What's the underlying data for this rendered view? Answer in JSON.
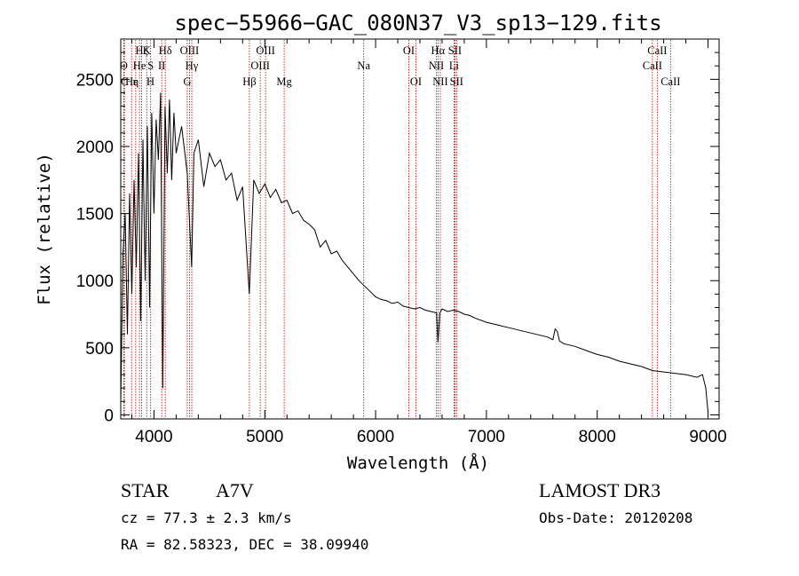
{
  "chart_data": {
    "type": "line",
    "title": "spec−55966−GAC_080N37_V3_sp13−129.fits",
    "xlabel": "Wavelength (Å)",
    "ylabel": "Flux (relative)",
    "xlim": [
      3700,
      9100
    ],
    "ylim": [
      -30,
      2800
    ],
    "xticks": [
      4000,
      5000,
      6000,
      7000,
      8000,
      9000
    ],
    "yticks": [
      0,
      500,
      1000,
      1500,
      2000,
      2500
    ],
    "grid": false,
    "series": [
      {
        "name": "Flux",
        "x": [
          3700,
          3720,
          3740,
          3760,
          3780,
          3800,
          3820,
          3840,
          3860,
          3880,
          3900,
          3920,
          3940,
          3960,
          3980,
          4000,
          4020,
          4040,
          4060,
          4080,
          4100,
          4120,
          4140,
          4160,
          4180,
          4200,
          4250,
          4300,
          4340,
          4360,
          4400,
          4450,
          4500,
          4550,
          4600,
          4650,
          4700,
          4750,
          4800,
          4860,
          4900,
          4950,
          5000,
          5050,
          5100,
          5150,
          5200,
          5250,
          5300,
          5350,
          5400,
          5450,
          5500,
          5550,
          5600,
          5650,
          5700,
          5750,
          5800,
          5850,
          5900,
          5950,
          6000,
          6050,
          6100,
          6150,
          6200,
          6250,
          6300,
          6350,
          6400,
          6450,
          6500,
          6550,
          6563,
          6580,
          6600,
          6650,
          6700,
          6750,
          6800,
          6850,
          6900,
          7000,
          7100,
          7200,
          7300,
          7400,
          7500,
          7550,
          7600,
          7620,
          7640,
          7660,
          7700,
          7800,
          7900,
          8000,
          8100,
          8200,
          8300,
          8400,
          8500,
          8600,
          8700,
          8800,
          8900,
          8950,
          8980,
          9000
        ],
        "values": [
          90,
          1200,
          1500,
          600,
          1650,
          900,
          1750,
          1100,
          1950,
          700,
          2050,
          1000,
          2150,
          800,
          2250,
          1500,
          2200,
          1900,
          2400,
          200,
          2300,
          1800,
          2350,
          1750,
          2250,
          1950,
          2150,
          1800,
          1100,
          1950,
          2050,
          1700,
          1950,
          1850,
          1900,
          1750,
          1800,
          1600,
          1700,
          900,
          1750,
          1650,
          1720,
          1620,
          1680,
          1580,
          1600,
          1500,
          1520,
          1450,
          1420,
          1380,
          1250,
          1300,
          1200,
          1220,
          1150,
          1100,
          1050,
          1000,
          960,
          920,
          880,
          860,
          850,
          830,
          840,
          810,
          800,
          790,
          800,
          780,
          770,
          760,
          540,
          760,
          790,
          770,
          780,
          770,
          750,
          740,
          720,
          690,
          670,
          650,
          630,
          610,
          590,
          580,
          560,
          640,
          620,
          550,
          530,
          510,
          480,
          450,
          430,
          400,
          380,
          360,
          330,
          320,
          310,
          300,
          280,
          300,
          200,
          20
        ]
      }
    ],
    "spectral_lines": [
      {
        "label": "Hζ",
        "wavelength": 3889,
        "row": 1
      },
      {
        "label": "O",
        "wavelength": 3727,
        "row": 2
      },
      {
        "label": "C",
        "wavelength": 3733,
        "row": 3
      },
      {
        "label": "Hε",
        "wavelength": 3798,
        "row": 3
      },
      {
        "label": "η",
        "wavelength": 3835,
        "row": 3
      },
      {
        "label": "He",
        "wavelength": 3869,
        "row": 2
      },
      {
        "label": "K",
        "wavelength": 3934,
        "row": 1
      },
      {
        "label": "S",
        "wavelength": 3970,
        "row": 2
      },
      {
        "label": "H",
        "wavelength": 3969,
        "row": 3
      },
      {
        "label": "Hδ",
        "wavelength": 4102,
        "row": 1
      },
      {
        "label": "II",
        "wavelength": 4070,
        "row": 2
      },
      {
        "label": "OIII",
        "wavelength": 4320,
        "row": 1
      },
      {
        "label": "Hγ",
        "wavelength": 4341,
        "row": 2
      },
      {
        "label": "G",
        "wavelength": 4300,
        "row": 3
      },
      {
        "label": "Hβ",
        "wavelength": 4861,
        "row": 3
      },
      {
        "label": "OIII",
        "wavelength": 4959,
        "row": 2
      },
      {
        "label": "OIII",
        "wavelength": 5007,
        "row": 1
      },
      {
        "label": "Mg",
        "wavelength": 5175,
        "row": 3
      },
      {
        "label": "Na",
        "wavelength": 5893,
        "row": 2
      },
      {
        "label": "OI",
        "wavelength": 6300,
        "row": 1
      },
      {
        "label": "OI",
        "wavelength": 6364,
        "row": 3
      },
      {
        "label": "Hα",
        "wavelength": 6563,
        "row": 1
      },
      {
        "label": "SII",
        "wavelength": 6716,
        "row": 1
      },
      {
        "label": "NII",
        "wavelength": 6548,
        "row": 2
      },
      {
        "label": "Li",
        "wavelength": 6708,
        "row": 2
      },
      {
        "label": "NII",
        "wavelength": 6584,
        "row": 3
      },
      {
        "label": "SII",
        "wavelength": 6731,
        "row": 3
      },
      {
        "label": "CaII",
        "wavelength": 8542,
        "row": 1
      },
      {
        "label": "CaII",
        "wavelength": 8498,
        "row": 2
      },
      {
        "label": "CaII",
        "wavelength": 8662,
        "row": 3
      }
    ],
    "line_colors": {
      "spectrum": "#000000",
      "marker": "#b00000",
      "axes": "#000000"
    }
  },
  "info": {
    "object_type": "STAR",
    "subclass": "A7V",
    "survey": "LAMOST DR3",
    "redshift": "cz = 77.3 ± 2.3 km/s",
    "obs_date": "Obs-Date: 20120208",
    "coords": "RA =  82.58323, DEC =  38.09940"
  }
}
